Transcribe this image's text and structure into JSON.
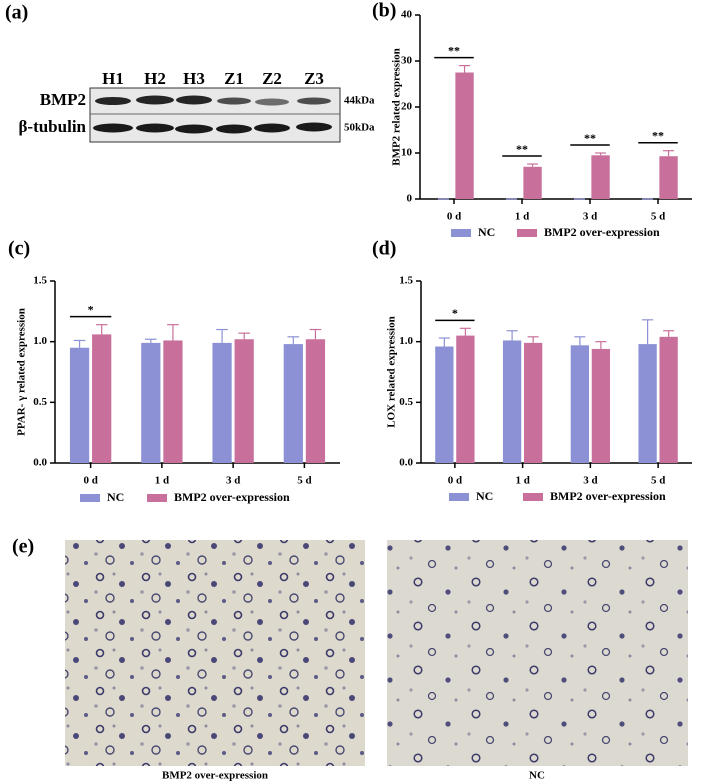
{
  "blot": {
    "label": "(a)",
    "lanes": [
      "H1",
      "H2",
      "H3",
      "Z1",
      "Z2",
      "Z3"
    ],
    "rows": [
      {
        "name": "BMP2",
        "size": "44kDa"
      },
      {
        "name": "β-tubulin",
        "size": "50kDa"
      }
    ]
  },
  "chart_data": [
    {
      "type": "bar",
      "label": "(b)",
      "ylabel": "BMP2 related expression",
      "categories": [
        "0 d",
        "1 d",
        "3 d",
        "5 d"
      ],
      "series": [
        {
          "name": "NC",
          "color": "#8b91d4",
          "values": [
            0,
            0,
            0,
            0
          ],
          "errors": [
            0,
            0,
            0,
            0
          ]
        },
        {
          "name": "BMP2 over-expression",
          "color": "#c8709b",
          "values": [
            27.5,
            7,
            9.5,
            9.3
          ],
          "errors": [
            1.5,
            0.6,
            0.5,
            1.2
          ]
        }
      ],
      "significance": [
        "**",
        "**",
        "**",
        "**"
      ],
      "ylim": [
        0,
        40
      ],
      "yticks": [
        0,
        10,
        20,
        30,
        40
      ]
    },
    {
      "type": "bar",
      "label": "(c)",
      "ylabel": "PPAR- γ  related expression",
      "categories": [
        "0 d",
        "1 d",
        "3 d",
        "5 d"
      ],
      "series": [
        {
          "name": "NC",
          "color": "#8b91d4",
          "values": [
            0.95,
            0.99,
            0.99,
            0.98
          ],
          "errors": [
            0.06,
            0.03,
            0.11,
            0.06
          ]
        },
        {
          "name": "BMP2 over-expression",
          "color": "#c8709b",
          "values": [
            1.06,
            1.01,
            1.02,
            1.02
          ],
          "errors": [
            0.08,
            0.13,
            0.05,
            0.08
          ]
        }
      ],
      "significance": [
        "*",
        null,
        null,
        null
      ],
      "ylim": [
        0,
        1.5
      ],
      "yticks": [
        {
          "value": 0,
          "label": "0.0"
        },
        0.5,
        {
          "value": 1,
          "label": "1.0"
        },
        1.5
      ]
    },
    {
      "type": "bar",
      "label": "(d)",
      "ylabel": "LOX related expression",
      "categories": [
        "0 d",
        "1 d",
        "3 d",
        "5 d"
      ],
      "series": [
        {
          "name": "NC",
          "color": "#8b91d4",
          "values": [
            0.96,
            1.01,
            0.97,
            0.98
          ],
          "errors": [
            0.07,
            0.08,
            0.07,
            0.2
          ]
        },
        {
          "name": "BMP2 over-expression",
          "color": "#c8709b",
          "values": [
            1.05,
            0.99,
            0.94,
            1.04
          ],
          "errors": [
            0.06,
            0.05,
            0.06,
            0.05
          ]
        }
      ],
      "significance": [
        "*",
        null,
        null,
        null
      ],
      "ylim": [
        0,
        1.5
      ],
      "yticks": [
        {
          "value": 0,
          "label": "0.0"
        },
        0.5,
        {
          "value": 1,
          "label": "1.0"
        },
        1.5
      ]
    }
  ],
  "images": {
    "label": "(e)",
    "captions": [
      "BMP2 over-expression",
      "NC"
    ]
  }
}
